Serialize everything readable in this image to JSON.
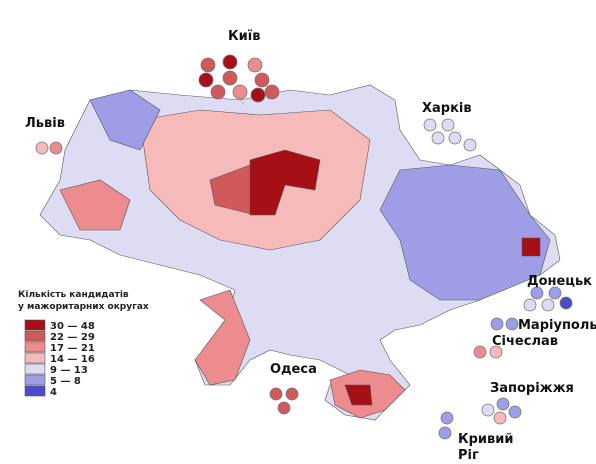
{
  "legend": {
    "title_lines": [
      "Кількість кандидатів",
      "у мажоритарних округах"
    ],
    "items": [
      {
        "label": "30 — 48",
        "color": "#a50f15"
      },
      {
        "label": "22 — 29",
        "color": "#d0595c"
      },
      {
        "label": "17 — 21",
        "color": "#ec8c8e"
      },
      {
        "label": "14 — 16",
        "color": "#f6baba"
      },
      {
        "label": "9 — 13",
        "color": "#dedcf3"
      },
      {
        "label": "5 — 8",
        "color": "#9e9de6"
      },
      {
        "label": "4",
        "color": "#4d4bcb"
      }
    ]
  },
  "cities": [
    {
      "lines": [
        "Київ"
      ]
    },
    {
      "lines": [
        "Львів"
      ]
    },
    {
      "lines": [
        "Харків"
      ]
    },
    {
      "lines": [
        "Донецьк"
      ]
    },
    {
      "lines": [
        "Маріуполь"
      ]
    },
    {
      "lines": [
        "Січеслав"
      ]
    },
    {
      "lines": [
        "Запоріжжя"
      ]
    },
    {
      "lines": [
        "Одеса"
      ]
    },
    {
      "lines": [
        "Кривий",
        "Ріг"
      ]
    }
  ]
}
